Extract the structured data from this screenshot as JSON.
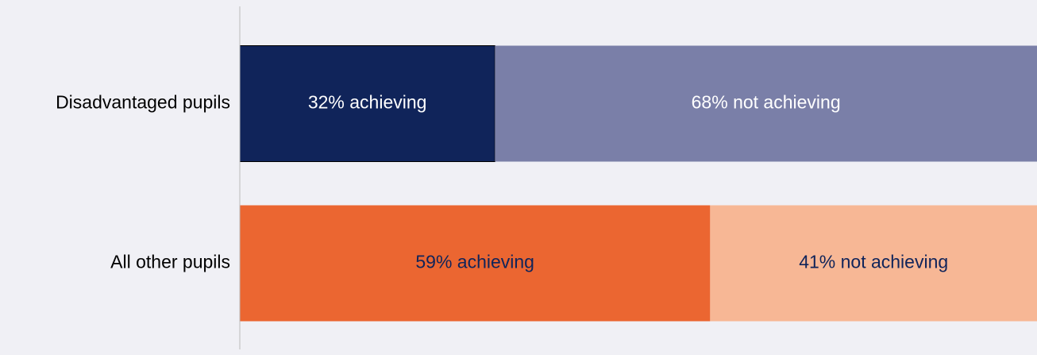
{
  "chart_data": {
    "type": "bar",
    "orientation": "horizontal",
    "stacked": true,
    "categories": [
      "Disadvantaged pupils",
      "All other pupils"
    ],
    "series": [
      {
        "values": [
          32,
          59
        ],
        "value_labels": [
          "32% achieving",
          "59% achieving"
        ],
        "colors": [
          "#10245a",
          "#eb6631"
        ],
        "label_colors": [
          "#ffffff",
          "#10245a"
        ]
      },
      {
        "values": [
          68,
          41
        ],
        "value_labels": [
          "68% not achieving",
          "41% not achieving"
        ],
        "colors": [
          "#7a7fa8",
          "#f7b795"
        ],
        "label_colors": [
          "#ffffff",
          "#10245a"
        ]
      }
    ],
    "xlim": [
      0,
      100
    ]
  }
}
